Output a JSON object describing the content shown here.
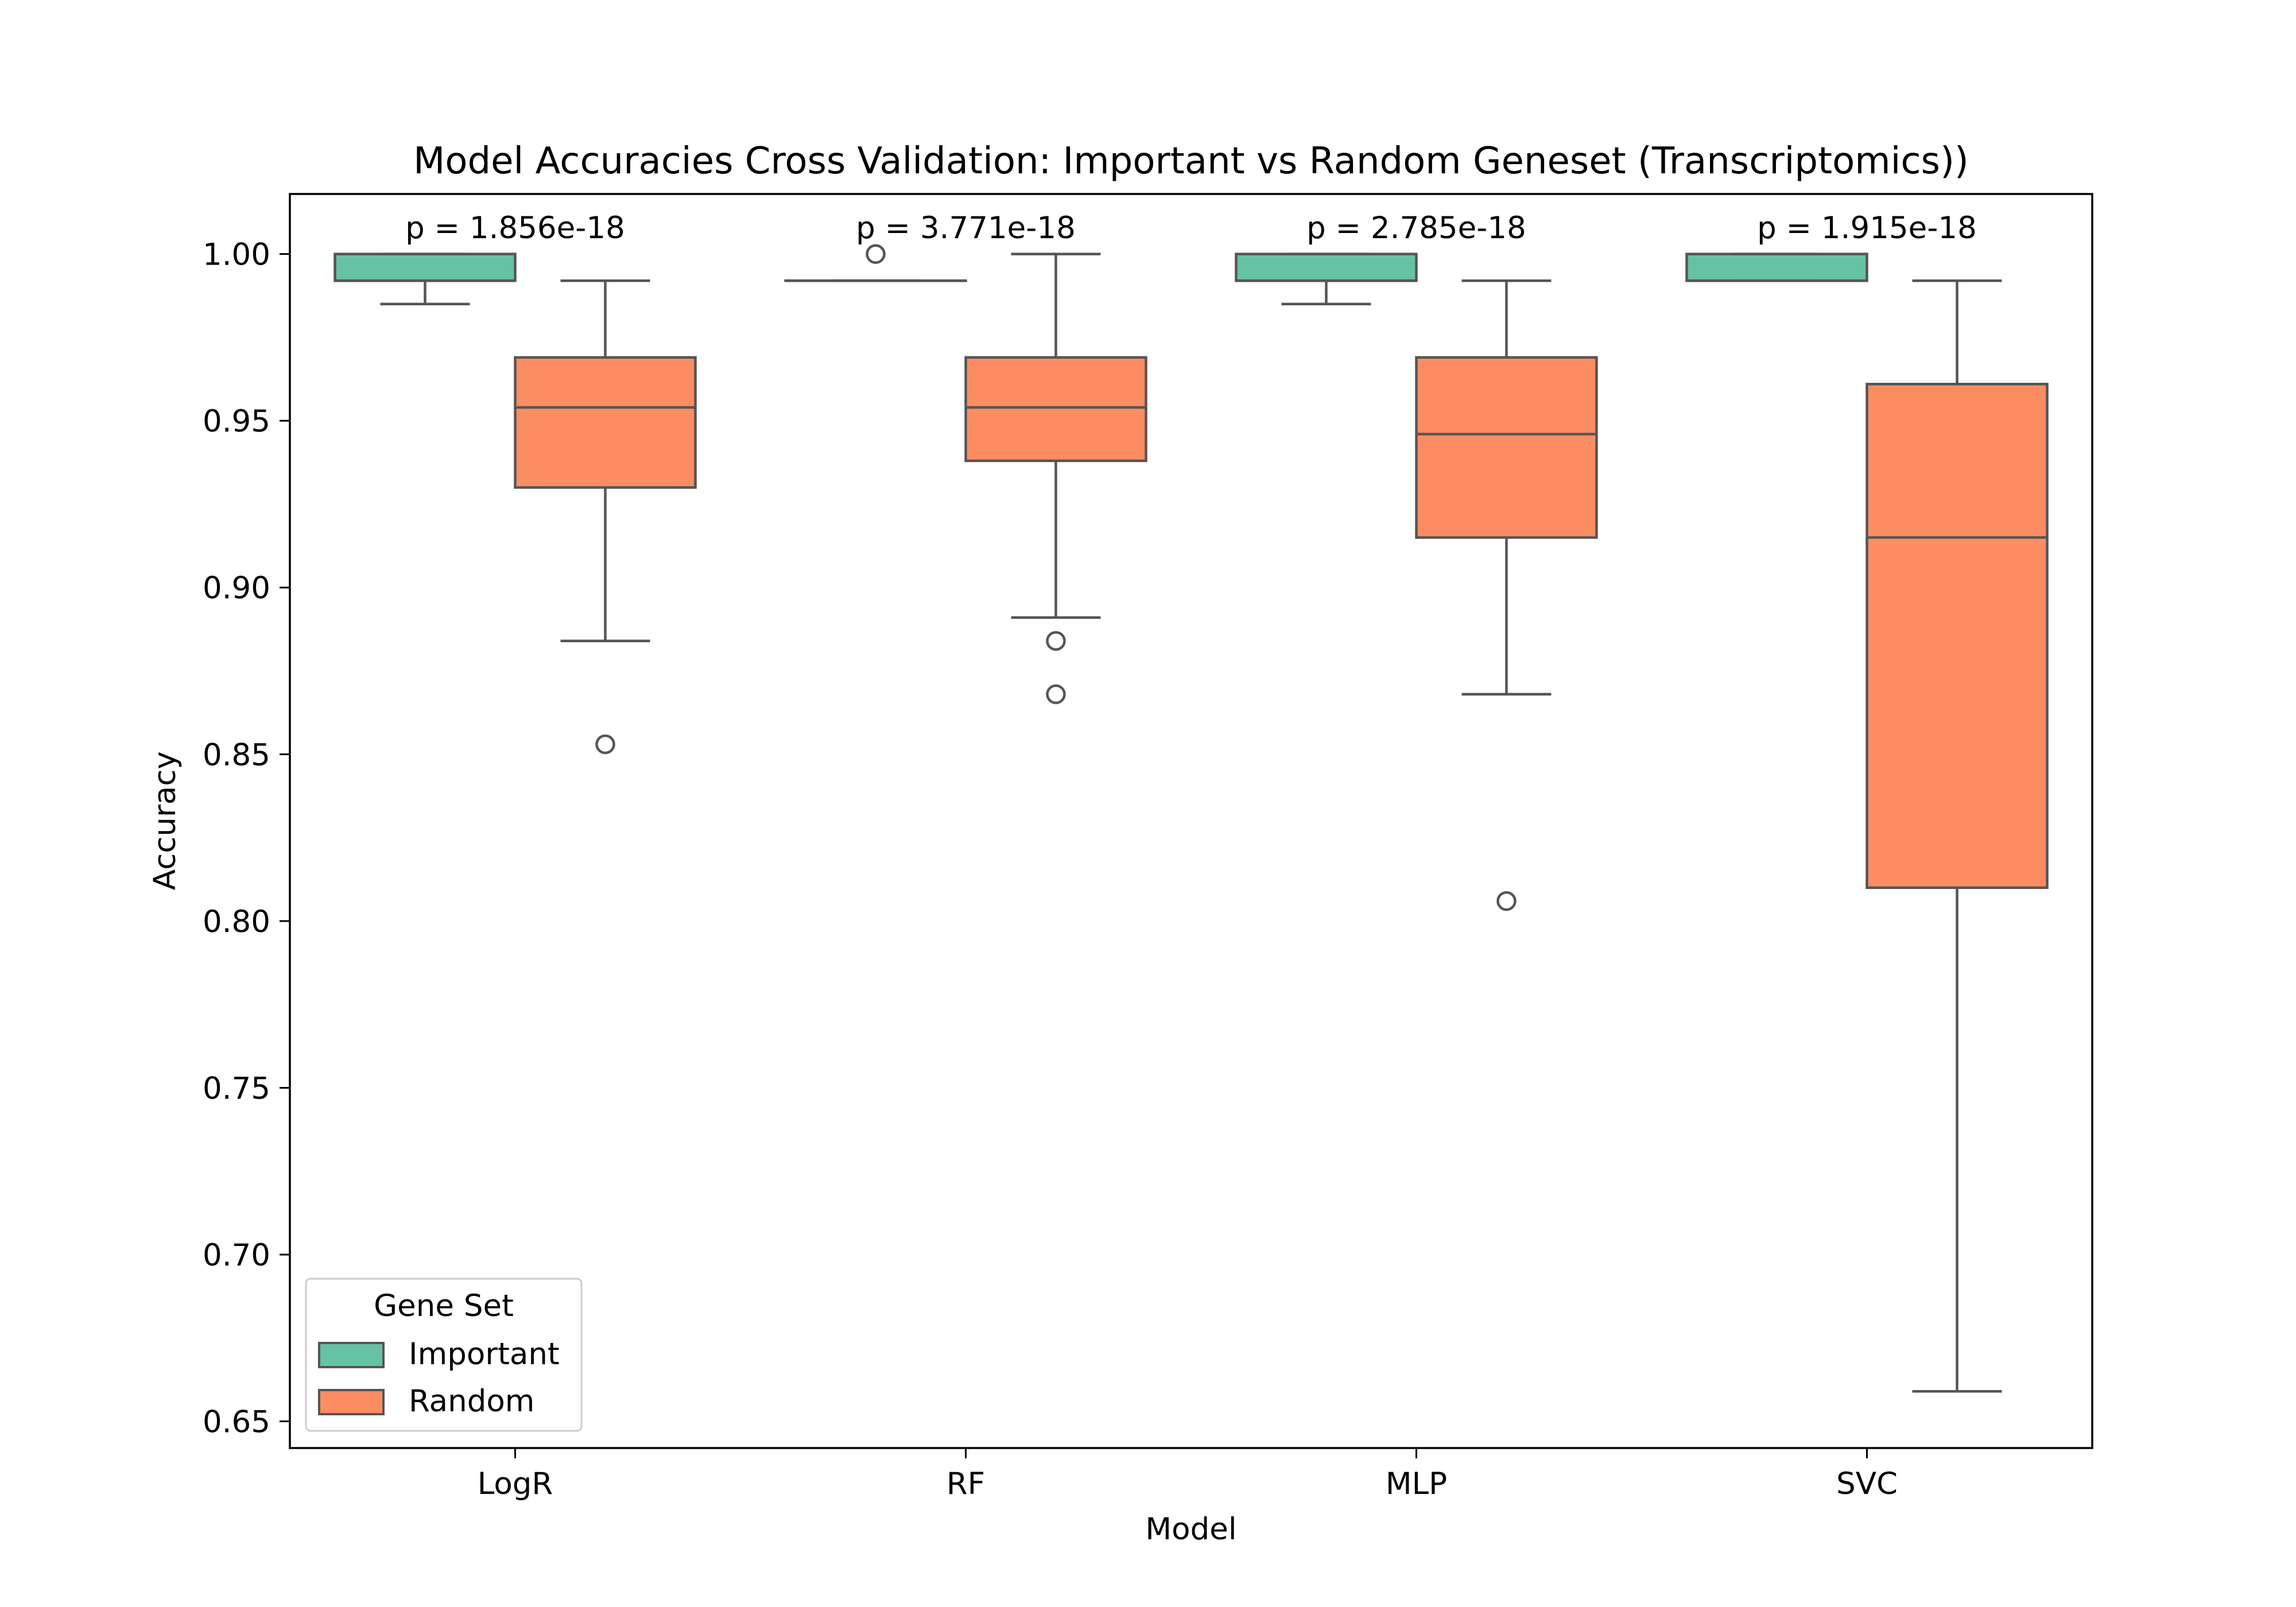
{
  "chart_data": {
    "type": "box",
    "title": "Model Accuracies Cross Validation: Important vs Random Geneset (Transcriptomics))",
    "xlabel": "Model",
    "ylabel": "Accuracy",
    "ylim": [
      0.642,
      1.018
    ],
    "yticks": [
      0.65,
      0.7,
      0.75,
      0.8,
      0.85,
      0.9,
      0.95,
      1.0
    ],
    "ytick_labels": [
      "0.65",
      "0.70",
      "0.75",
      "0.80",
      "0.85",
      "0.90",
      "0.95",
      "1.00"
    ],
    "categories": [
      "LogR",
      "RF",
      "MLP",
      "SVC"
    ],
    "grid": false,
    "legend": {
      "title": "Gene Set",
      "placement": "lower-left",
      "entries": [
        "Important",
        "Random"
      ]
    },
    "series": [
      {
        "name": "Important",
        "color": "#66c2a5",
        "boxes": [
          {
            "whisker_low": 0.985,
            "q1": 0.992,
            "median": 0.992,
            "q3": 1.0,
            "whisker_high": 1.0,
            "outliers": []
          },
          {
            "whisker_low": 0.992,
            "q1": 0.992,
            "median": 0.992,
            "q3": 0.992,
            "whisker_high": 0.992,
            "outliers": [
              1.0
            ]
          },
          {
            "whisker_low": 0.985,
            "q1": 0.992,
            "median": 0.992,
            "q3": 1.0,
            "whisker_high": 1.0,
            "outliers": []
          },
          {
            "whisker_low": 0.992,
            "q1": 0.992,
            "median": 0.992,
            "q3": 1.0,
            "whisker_high": 1.0,
            "outliers": []
          }
        ]
      },
      {
        "name": "Random",
        "color": "#fc8d62",
        "boxes": [
          {
            "whisker_low": 0.884,
            "q1": 0.93,
            "median": 0.954,
            "q3": 0.969,
            "whisker_high": 0.992,
            "outliers": [
              0.853
            ]
          },
          {
            "whisker_low": 0.891,
            "q1": 0.938,
            "median": 0.954,
            "q3": 0.969,
            "whisker_high": 1.0,
            "outliers": [
              0.884,
              0.868
            ]
          },
          {
            "whisker_low": 0.868,
            "q1": 0.915,
            "median": 0.946,
            "q3": 0.969,
            "whisker_high": 0.992,
            "outliers": [
              0.806
            ]
          },
          {
            "whisker_low": 0.659,
            "q1": 0.81,
            "median": 0.915,
            "q3": 0.961,
            "whisker_high": 0.992,
            "outliers": []
          }
        ]
      }
    ],
    "annotations": [
      "p = 1.856e-18",
      "p = 3.771e-18",
      "p = 2.785e-18",
      "p = 1.915e-18"
    ]
  }
}
